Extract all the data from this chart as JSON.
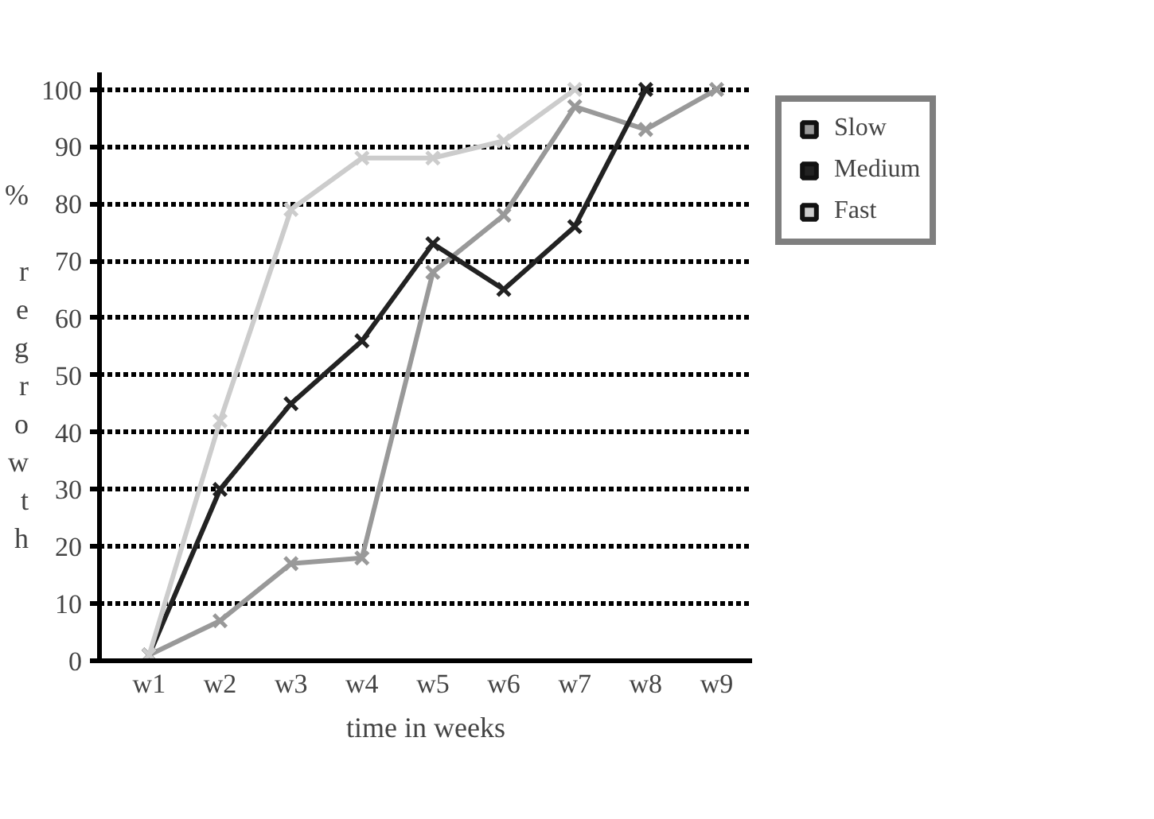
{
  "chart_data": {
    "type": "line",
    "xlabel": "time in weeks",
    "ylabel": "% regrowth",
    "categories": [
      "w1",
      "w2",
      "w3",
      "w4",
      "w5",
      "w6",
      "w7",
      "w8",
      "w9"
    ],
    "series": [
      {
        "name": "Slow",
        "color": "#999999",
        "values": [
          1,
          7,
          17,
          18,
          68,
          78,
          97,
          93,
          100
        ]
      },
      {
        "name": "Medium",
        "color": "#222222",
        "values": [
          1,
          30,
          45,
          56,
          73,
          65,
          76,
          100,
          null
        ]
      },
      {
        "name": "Fast",
        "color": "#cccccc",
        "values": [
          1,
          42,
          79,
          88,
          88,
          91,
          100,
          null,
          null
        ]
      }
    ],
    "ylim": [
      0,
      103
    ],
    "yticks": [
      0,
      10,
      20,
      30,
      40,
      50,
      60,
      70,
      80,
      90,
      100
    ],
    "grid": "y",
    "legend": "top right",
    "marker": "cross",
    "line_style": "solid"
  }
}
